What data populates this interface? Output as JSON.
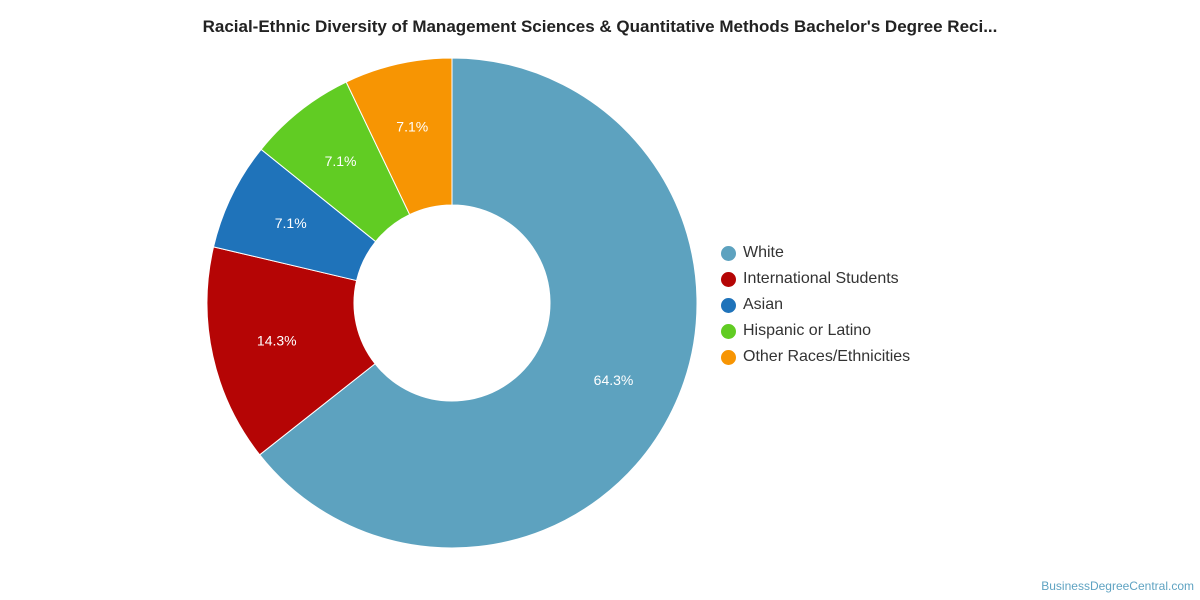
{
  "title": "Racial-Ethnic Diversity of Management Sciences & Quantitative Methods Bachelor's Degree Reci...",
  "credit": "BusinessDegreeCentral.com",
  "chart_data": {
    "type": "pie",
    "donut": true,
    "title": "Racial-Ethnic Diversity of Management Sciences & Quantitative Methods Bachelor's Degree Reci...",
    "legend_position": "right",
    "series": [
      {
        "name": "White",
        "value": 64.3,
        "label": "64.3%",
        "color": "#5da2bf"
      },
      {
        "name": "International Students",
        "value": 14.3,
        "label": "14.3%",
        "color": "#b50505"
      },
      {
        "name": "Asian",
        "value": 7.1,
        "label": "7.1%",
        "color": "#1f73ba"
      },
      {
        "name": "Hispanic or Latino",
        "value": 7.1,
        "label": "7.1%",
        "color": "#61cc23"
      },
      {
        "name": "Other Races/Ethnicities",
        "value": 7.1,
        "label": "7.1%",
        "color": "#f79503"
      }
    ]
  }
}
